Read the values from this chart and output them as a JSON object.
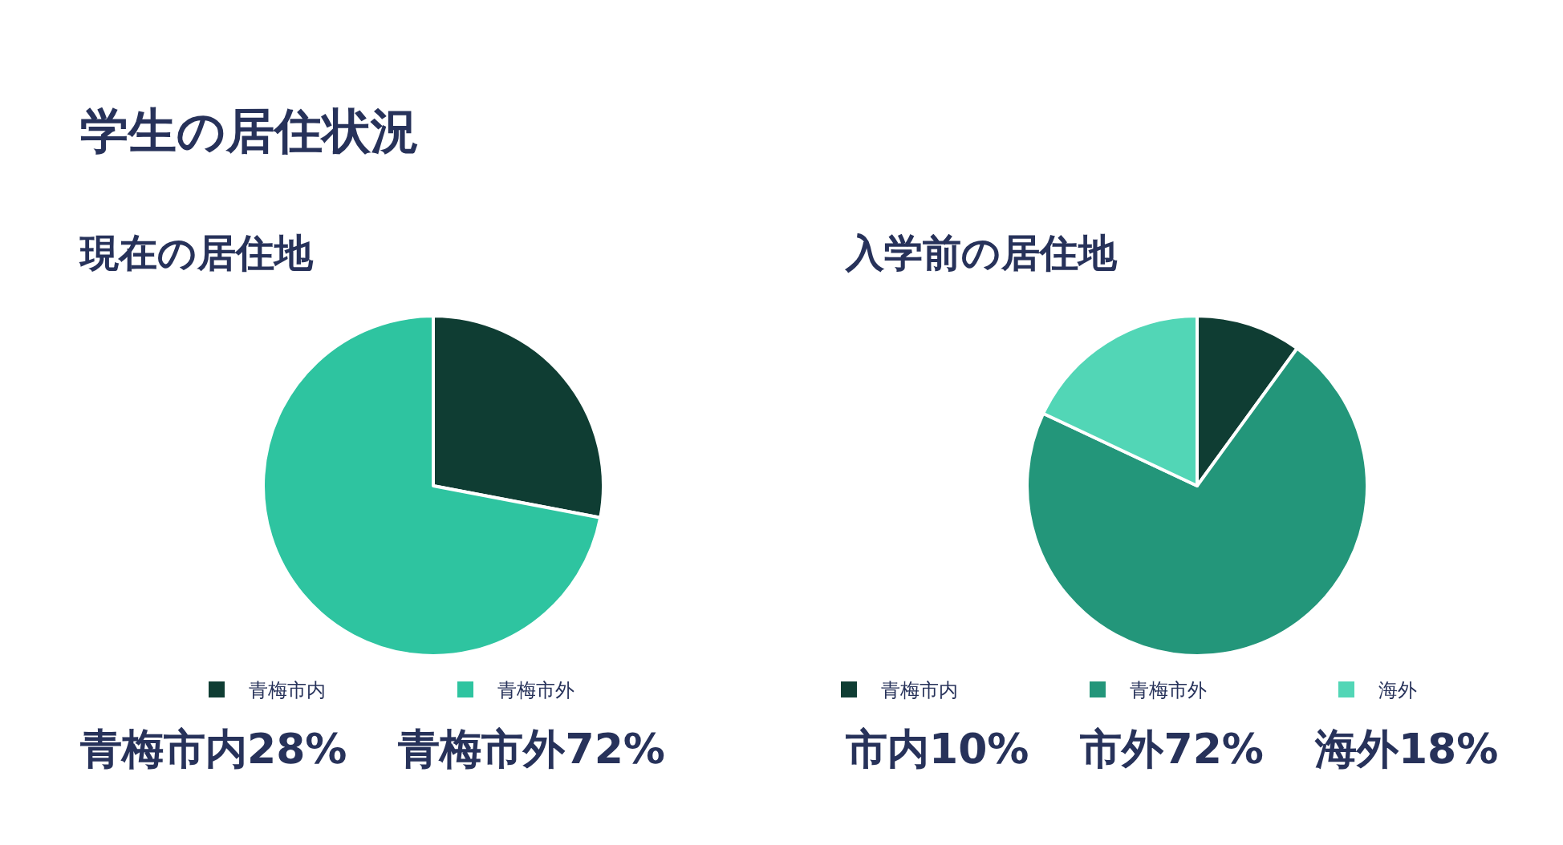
{
  "chart_data": [
    {
      "type": "pie",
      "title": "学生の居住状況",
      "subtitle": "現在の居住地",
      "categories": [
        "青梅市内",
        "青梅市外"
      ],
      "values": [
        28,
        72
      ],
      "colors": [
        "#0f3d33",
        "#2ec4a0"
      ],
      "legend": "bottom",
      "annotations": [
        "青梅市内28%",
        "青梅市外72%"
      ]
    },
    {
      "type": "pie",
      "subtitle": "入学前の居住地",
      "categories": [
        "青梅市内",
        "青梅市外",
        "海外"
      ],
      "values": [
        10,
        72,
        18
      ],
      "colors": [
        "#0f3d33",
        "#23967a",
        "#52d6b6"
      ],
      "legend": "bottom",
      "annotations": [
        "市内10%",
        "市外72%",
        "海外18%"
      ]
    }
  ]
}
